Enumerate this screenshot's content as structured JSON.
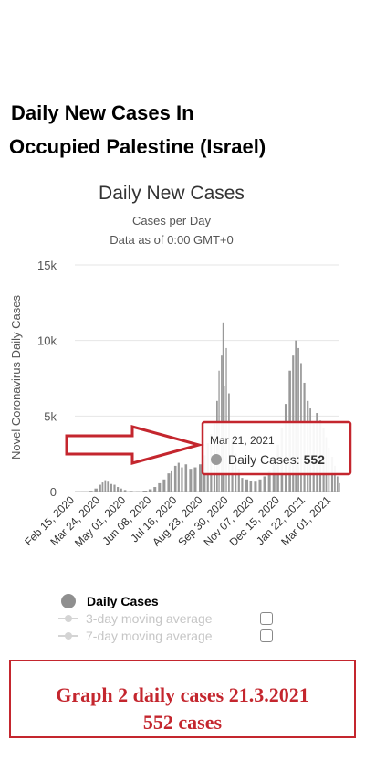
{
  "headline": {
    "line1": "Daily New Cases In",
    "line2": "Occupied Palestine (Israel)"
  },
  "chart_data": {
    "type": "bar",
    "title": "Daily New Cases",
    "subtitle_line1": "Cases per Day",
    "subtitle_line2": "Data as of 0:00 GMT+0",
    "ylabel": "Novel Coronavirus Daily Cases",
    "xlabel": "",
    "ylim": [
      0,
      15000
    ],
    "yticks": [
      {
        "value": 0,
        "label": "0"
      },
      {
        "value": 5000,
        "label": "5k"
      },
      {
        "value": 10000,
        "label": "10k"
      },
      {
        "value": 15000,
        "label": "15k"
      }
    ],
    "grid": true,
    "x_start": "2020-02-15",
    "x_end": "2021-03-21",
    "xtick_labels": [
      "Feb 15, 2020",
      "Mar 24, 2020",
      "May 01, 2020",
      "Jun 08, 2020",
      "Jul 16, 2020",
      "Aug 23, 2020",
      "Sep 30, 2020",
      "Nov 07, 2020",
      "Dec 15, 2020",
      "Jan 22, 2021",
      "Mar 01, 2021"
    ],
    "series": [
      {
        "name": "Daily Cases",
        "color": "#999999",
        "points": [
          [
            "2020-02-15",
            0
          ],
          [
            "2020-02-29",
            5
          ],
          [
            "2020-03-10",
            50
          ],
          [
            "2020-03-18",
            200
          ],
          [
            "2020-03-24",
            450
          ],
          [
            "2020-03-28",
            600
          ],
          [
            "2020-04-01",
            750
          ],
          [
            "2020-04-05",
            650
          ],
          [
            "2020-04-10",
            500
          ],
          [
            "2020-04-15",
            450
          ],
          [
            "2020-04-20",
            300
          ],
          [
            "2020-04-25",
            200
          ],
          [
            "2020-05-01",
            100
          ],
          [
            "2020-05-10",
            40
          ],
          [
            "2020-05-20",
            20
          ],
          [
            "2020-05-31",
            60
          ],
          [
            "2020-06-08",
            150
          ],
          [
            "2020-06-15",
            300
          ],
          [
            "2020-06-22",
            550
          ],
          [
            "2020-06-29",
            800
          ],
          [
            "2020-07-06",
            1200
          ],
          [
            "2020-07-10",
            1400
          ],
          [
            "2020-07-16",
            1700
          ],
          [
            "2020-07-21",
            1900
          ],
          [
            "2020-07-26",
            1600
          ],
          [
            "2020-08-01",
            1800
          ],
          [
            "2020-08-08",
            1500
          ],
          [
            "2020-08-15",
            1600
          ],
          [
            "2020-08-23",
            1800
          ],
          [
            "2020-08-29",
            2400
          ],
          [
            "2020-09-03",
            3200
          ],
          [
            "2020-09-08",
            3800
          ],
          [
            "2020-09-13",
            4500
          ],
          [
            "2020-09-17",
            6000
          ],
          [
            "2020-09-20",
            8000
          ],
          [
            "2020-09-24",
            9000
          ],
          [
            "2020-09-26",
            11200
          ],
          [
            "2020-09-28",
            7000
          ],
          [
            "2020-10-01",
            9500
          ],
          [
            "2020-10-05",
            6500
          ],
          [
            "2020-10-10",
            3500
          ],
          [
            "2020-10-15",
            2500
          ],
          [
            "2020-10-20",
            1500
          ],
          [
            "2020-10-25",
            900
          ],
          [
            "2020-11-01",
            800
          ],
          [
            "2020-11-07",
            700
          ],
          [
            "2020-11-14",
            650
          ],
          [
            "2020-11-21",
            800
          ],
          [
            "2020-11-28",
            1000
          ],
          [
            "2020-12-05",
            1400
          ],
          [
            "2020-12-12",
            2200
          ],
          [
            "2020-12-18",
            3100
          ],
          [
            "2020-12-24",
            4200
          ],
          [
            "2020-12-30",
            5800
          ],
          [
            "2021-01-05",
            8000
          ],
          [
            "2021-01-10",
            9000
          ],
          [
            "2021-01-14",
            10000
          ],
          [
            "2021-01-18",
            9500
          ],
          [
            "2021-01-22",
            8500
          ],
          [
            "2021-01-27",
            7200
          ],
          [
            "2021-02-01",
            6000
          ],
          [
            "2021-02-05",
            5500
          ],
          [
            "2021-02-10",
            4500
          ],
          [
            "2021-02-15",
            5200
          ],
          [
            "2021-02-20",
            4700
          ],
          [
            "2021-02-25",
            4200
          ],
          [
            "2021-03-01",
            3600
          ],
          [
            "2021-03-05",
            2900
          ],
          [
            "2021-03-10",
            2300
          ],
          [
            "2021-03-14",
            1700
          ],
          [
            "2021-03-18",
            1000
          ],
          [
            "2021-03-21",
            552
          ]
        ]
      }
    ],
    "tooltip": {
      "date": "Mar 21, 2021",
      "label": "Daily Cases:",
      "value": "552"
    }
  },
  "legend": {
    "items": [
      {
        "label": "Daily Cases",
        "active": true
      },
      {
        "label": "3-day moving average",
        "active": false
      },
      {
        "label": "7-day moving average",
        "active": false
      }
    ]
  },
  "annotation": {
    "line1": "Graph 2 daily cases 21.3.2021",
    "line2": "552 cases",
    "color": "#c4262e"
  }
}
